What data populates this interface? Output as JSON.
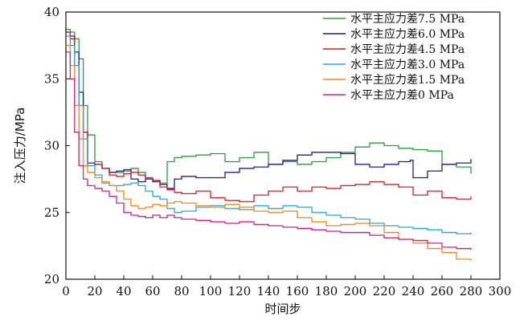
{
  "chart_data": {
    "type": "line",
    "xlabel": "时间步",
    "ylabel": "注入压力/MPa",
    "xlim": [
      0,
      300
    ],
    "ylim": [
      20,
      40
    ],
    "xticks": [
      0,
      20,
      40,
      60,
      80,
      100,
      120,
      140,
      160,
      180,
      200,
      220,
      240,
      260,
      280,
      300
    ],
    "yticks": [
      20,
      25,
      30,
      35,
      40
    ],
    "grid": false,
    "legend_position": "top-right",
    "series": [
      {
        "name": "水平主应力差7.5 MPa",
        "color": "#2e9b3e",
        "x": [
          0,
          3,
          6,
          9,
          12,
          15,
          20,
          25,
          30,
          35,
          40,
          45,
          50,
          55,
          60,
          65,
          70,
          75,
          80,
          90,
          100,
          110,
          120,
          130,
          140,
          150,
          160,
          170,
          180,
          190,
          200,
          210,
          220,
          230,
          240,
          250,
          260,
          270,
          280
        ],
        "y": [
          38.7,
          38.5,
          38,
          36.5,
          33,
          30.8,
          28.8,
          28.3,
          28.0,
          28.0,
          28.1,
          28.3,
          28.0,
          27.6,
          27.4,
          27.2,
          28.8,
          29.1,
          29.2,
          29.3,
          29.4,
          28.8,
          29.1,
          29.5,
          28.6,
          28.8,
          28.6,
          28.8,
          29.1,
          29.5,
          29.9,
          30.2,
          30.0,
          29.8,
          29.7,
          29.6,
          28.6,
          28.4,
          27.9
        ]
      },
      {
        "name": "水平主应力差6.0 MPa",
        "color": "#1f1f8c",
        "x": [
          0,
          3,
          6,
          9,
          12,
          15,
          20,
          25,
          30,
          35,
          40,
          45,
          50,
          55,
          60,
          65,
          70,
          75,
          80,
          90,
          100,
          110,
          120,
          130,
          140,
          150,
          160,
          170,
          180,
          190,
          200,
          210,
          220,
          230,
          238,
          240,
          250,
          260,
          270,
          280
        ],
        "y": [
          38.5,
          38.2,
          37,
          34,
          31,
          28.7,
          28.6,
          28.3,
          28.0,
          28.1,
          28.2,
          27.5,
          27.3,
          27.5,
          27.3,
          27.1,
          26.8,
          27.5,
          27.7,
          27.6,
          27.6,
          28.0,
          28.3,
          28.4,
          28.6,
          28.9,
          29.3,
          29.5,
          29.5,
          29.4,
          28.6,
          28.4,
          28.6,
          28.8,
          28.9,
          27.6,
          28.1,
          28.6,
          28.7,
          29.0
        ]
      },
      {
        "name": "水平主应力差4.5 MPa",
        "color": "#d41f26",
        "x": [
          0,
          3,
          6,
          9,
          12,
          15,
          20,
          25,
          30,
          35,
          40,
          45,
          50,
          55,
          60,
          65,
          70,
          75,
          80,
          90,
          100,
          110,
          120,
          130,
          140,
          150,
          160,
          170,
          180,
          190,
          200,
          210,
          220,
          230,
          240,
          250,
          260,
          270,
          280
        ],
        "y": [
          38.5,
          38,
          36,
          33,
          31,
          28.5,
          28.6,
          28.3,
          27.8,
          27.7,
          27.9,
          28.0,
          27.8,
          27.6,
          27.4,
          26.9,
          26.7,
          26.5,
          26.4,
          26.6,
          26.1,
          25.9,
          25.8,
          26.3,
          26.6,
          26.9,
          26.6,
          26.9,
          26.8,
          27.0,
          27.1,
          27.3,
          27.1,
          26.9,
          26.3,
          26.6,
          26.1,
          26.0,
          26.2
        ]
      },
      {
        "name": "水平主应力差3.0 MPa",
        "color": "#2aa8d8",
        "x": [
          0,
          3,
          6,
          9,
          12,
          15,
          20,
          25,
          30,
          35,
          40,
          45,
          50,
          55,
          60,
          65,
          70,
          75,
          80,
          90,
          100,
          110,
          120,
          130,
          140,
          150,
          160,
          170,
          180,
          190,
          200,
          210,
          220,
          230,
          240,
          250,
          260,
          270,
          280
        ],
        "y": [
          38.2,
          37.5,
          36,
          33,
          30.5,
          28.5,
          27.8,
          27.2,
          27.0,
          27.0,
          27.1,
          27.2,
          27.0,
          26.6,
          26.2,
          26.0,
          25.3,
          25.0,
          25.1,
          25.4,
          25.5,
          25.3,
          25.2,
          25.5,
          25.3,
          25.5,
          25.4,
          25.0,
          24.8,
          24.6,
          24.5,
          24.2,
          24.0,
          23.9,
          23.8,
          23.7,
          23.5,
          23.4,
          23.5
        ]
      },
      {
        "name": "水平主应力差1.5 MPa",
        "color": "#ef8a1c",
        "x": [
          0,
          3,
          6,
          9,
          12,
          15,
          20,
          25,
          30,
          35,
          40,
          45,
          50,
          55,
          60,
          65,
          70,
          75,
          80,
          90,
          100,
          110,
          120,
          130,
          140,
          150,
          160,
          170,
          180,
          190,
          200,
          210,
          220,
          230,
          240,
          250,
          260,
          270,
          280
        ],
        "y": [
          37.5,
          36,
          33,
          30.5,
          28.5,
          28.0,
          27.6,
          27.3,
          27.0,
          26.6,
          26.0,
          25.5,
          25.3,
          25.4,
          25.6,
          25.5,
          25.7,
          25.8,
          25.7,
          25.5,
          25.4,
          25.6,
          25.4,
          25.1,
          25.0,
          25.1,
          24.6,
          24.3,
          24.0,
          24.1,
          24.2,
          24.0,
          23.5,
          23.0,
          22.7,
          22.3,
          22.0,
          21.5,
          21.4
        ]
      },
      {
        "name": "水平主应力差0 MPa",
        "color": "#d3237a",
        "x": [
          0,
          3,
          6,
          9,
          12,
          15,
          20,
          25,
          30,
          35,
          40,
          45,
          50,
          55,
          60,
          65,
          70,
          75,
          80,
          90,
          100,
          110,
          120,
          130,
          140,
          150,
          160,
          170,
          180,
          190,
          200,
          210,
          220,
          230,
          240,
          250,
          260,
          270,
          280
        ],
        "y": [
          37.0,
          35,
          31,
          28.5,
          27.5,
          27.0,
          26.8,
          26.6,
          26.2,
          25.7,
          25.0,
          24.8,
          24.7,
          24.6,
          24.8,
          24.6,
          24.8,
          24.6,
          24.5,
          24.4,
          24.3,
          24.2,
          24.3,
          24.1,
          24.0,
          23.9,
          23.8,
          23.7,
          23.6,
          23.5,
          23.5,
          23.3,
          23.1,
          23.0,
          22.9,
          22.7,
          22.4,
          22.3,
          22.2
        ]
      }
    ]
  }
}
